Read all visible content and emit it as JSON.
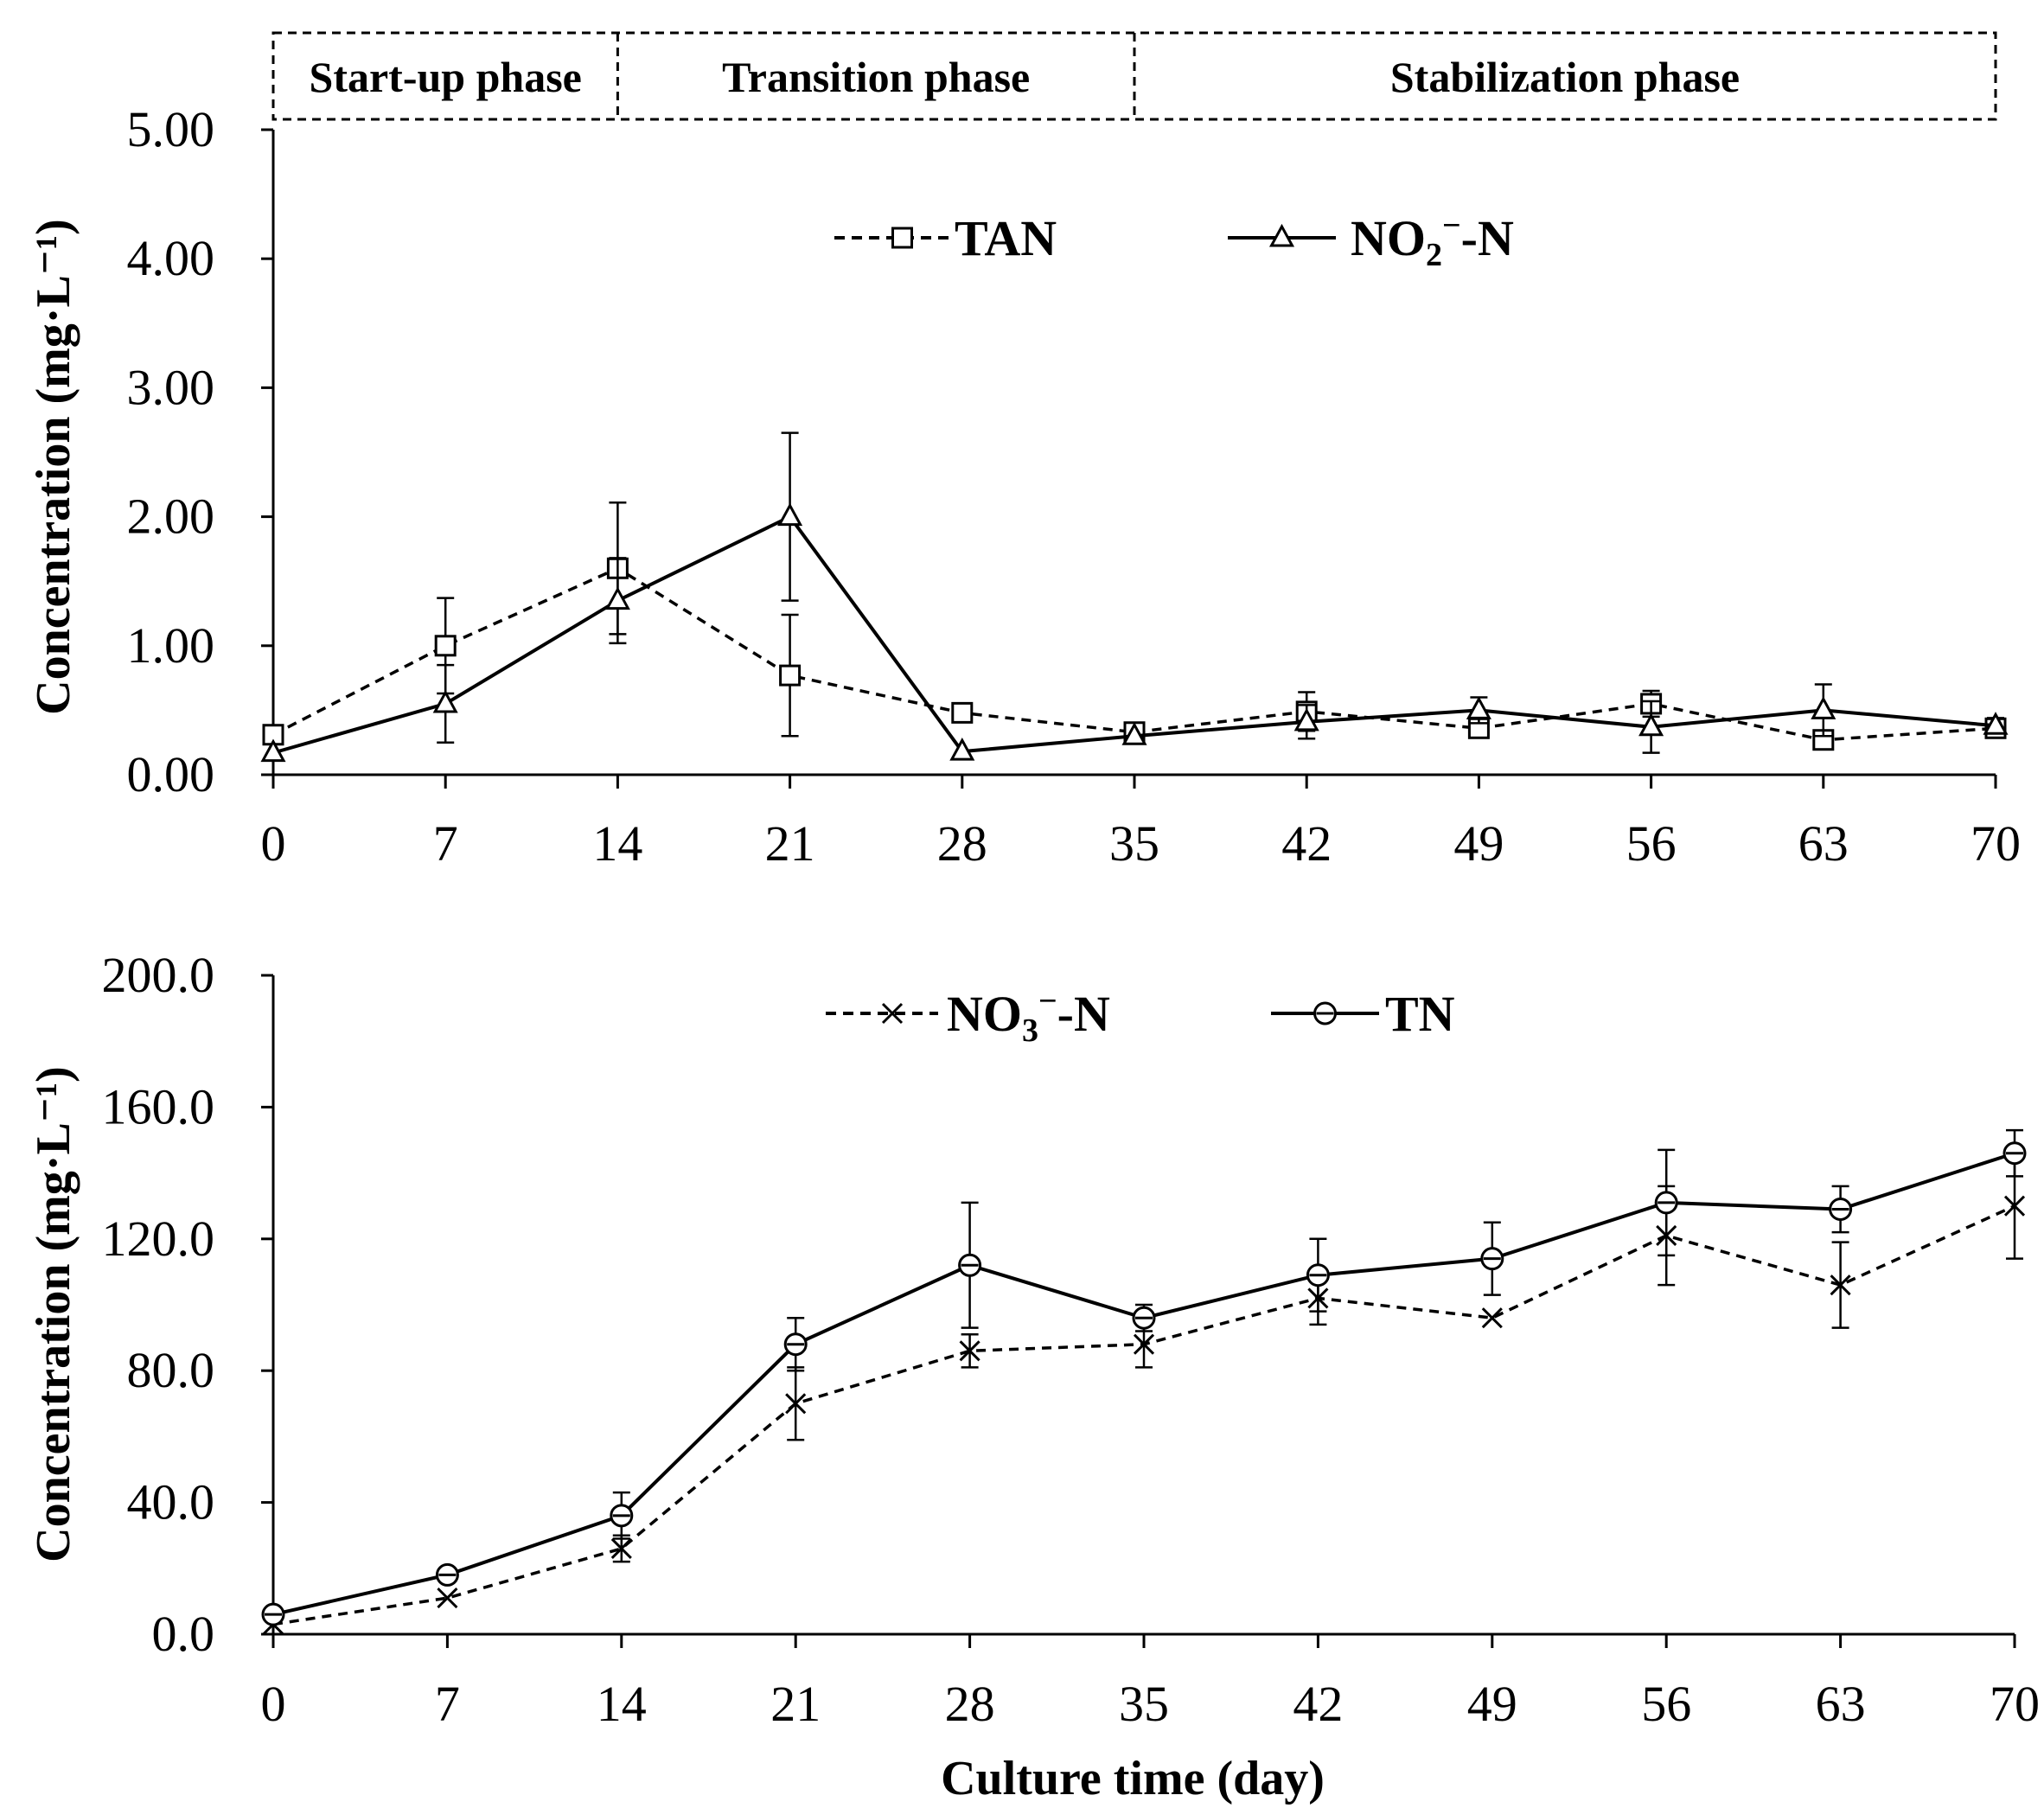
{
  "chart_data": [
    {
      "type": "line",
      "phases": [
        "Start-up phase",
        "Transition phase",
        "Stabilization phase"
      ],
      "phase_boundaries": [
        0,
        14,
        35,
        70
      ],
      "ylabel": "Concentration (mg·L⁻¹)",
      "xlabel": "",
      "ylim": [
        0,
        5
      ],
      "yticks": [
        "0.00",
        "1.00",
        "2.00",
        "3.00",
        "4.00",
        "5.00"
      ],
      "x": [
        0,
        7,
        14,
        21,
        28,
        35,
        42,
        49,
        56,
        63,
        70
      ],
      "xticks": [
        "0",
        "7",
        "14",
        "21",
        "28",
        "35",
        "42",
        "49",
        "56",
        "63",
        "70"
      ],
      "series": [
        {
          "name": "TAN",
          "legend_main": "TAN",
          "legend_sub": "",
          "legend_sup": "",
          "legend_tail": "",
          "marker": "square",
          "dashed": true,
          "values": [
            0.31,
            1.0,
            1.6,
            0.77,
            0.48,
            0.33,
            0.49,
            0.36,
            0.55,
            0.27,
            0.36
          ],
          "errors": [
            0.0,
            0.37,
            0.51,
            0.47,
            0.0,
            0.0,
            0.15,
            0.0,
            0.1,
            0.0,
            0.06
          ]
        },
        {
          "name": "NO2⁻-N",
          "legend_main": "NO",
          "legend_sub": "2",
          "legend_sup": "−",
          "legend_tail": "-N",
          "marker": "triangle",
          "dashed": false,
          "values": [
            0.17,
            0.55,
            1.35,
            2.0,
            0.18,
            0.3,
            0.41,
            0.5,
            0.37,
            0.5,
            0.38
          ],
          "errors": [
            0.0,
            0.3,
            0.33,
            0.65,
            0.0,
            0.0,
            0.13,
            0.1,
            0.2,
            0.2,
            0.06
          ]
        }
      ]
    },
    {
      "type": "line",
      "ylabel": "Concentration (mg·L⁻¹)",
      "xlabel": "Culture time (day)",
      "ylim": [
        0,
        200
      ],
      "yticks": [
        "0.0",
        "40.0",
        "80.0",
        "120.0",
        "160.0",
        "200.0"
      ],
      "x": [
        0,
        7,
        14,
        21,
        28,
        35,
        42,
        49,
        56,
        63,
        70
      ],
      "xticks": [
        "0",
        "7",
        "14",
        "21",
        "28",
        "35",
        "42",
        "49",
        "56",
        "63",
        "70"
      ],
      "series": [
        {
          "name": "NO3⁻-N",
          "legend_main": "NO",
          "legend_sub": "3",
          "legend_sup": "−",
          "legend_tail": "-N",
          "marker": "x",
          "dashed": true,
          "values": [
            3,
            11,
            26,
            70,
            86,
            88,
            102,
            96,
            121,
            106,
            130
          ],
          "errors": [
            0,
            0,
            4,
            11,
            5,
            7,
            8,
            0,
            15,
            13,
            16
          ]
        },
        {
          "name": "TN",
          "legend_main": "TN",
          "legend_sub": "",
          "legend_sup": "",
          "legend_tail": "",
          "marker": "circle",
          "dashed": false,
          "values": [
            6,
            18,
            36,
            88,
            112,
            96,
            109,
            114,
            131,
            129,
            146
          ],
          "errors": [
            0,
            0,
            7,
            8,
            19,
            4,
            11,
            11,
            16,
            7,
            7
          ]
        }
      ]
    }
  ]
}
